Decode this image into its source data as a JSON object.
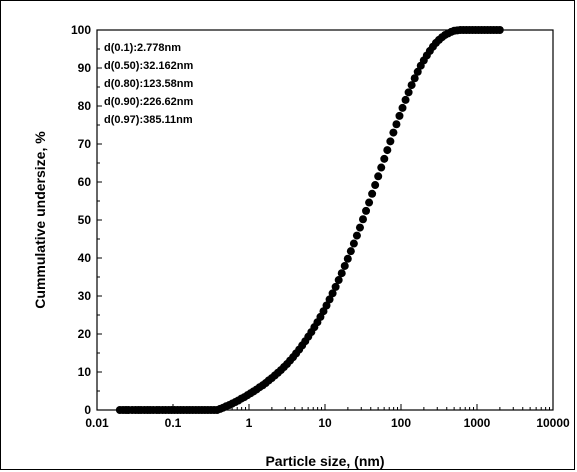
{
  "chart_data": {
    "type": "scatter",
    "xlabel": "Particle size, (nm)",
    "ylabel": "Cummulative undersize, %",
    "xscale": "log",
    "xlim": [
      0.01,
      10000
    ],
    "ylim": [
      0,
      100
    ],
    "x_ticks": [
      "0.01",
      "0.1",
      "1",
      "10",
      "100",
      "1000",
      "10000"
    ],
    "y_ticks": [
      "0",
      "10",
      "20",
      "30",
      "40",
      "50",
      "60",
      "70",
      "80",
      "90",
      "100"
    ],
    "annotations": [
      "d(0.1):2.778nm",
      "d(0.50):32.162nm",
      "d(0.80):123.58nm",
      "d(0.90):226.62nm",
      "d(0.97):385.11nm"
    ],
    "grid": false,
    "marker_color": "#000000",
    "series": [
      {
        "x": [
          0.02,
          0.022,
          0.024,
          0.026,
          0.029,
          0.032,
          0.035,
          0.038,
          0.042,
          0.046,
          0.05,
          0.055,
          0.061,
          0.066,
          0.073,
          0.08,
          0.088,
          0.096,
          0.105,
          0.115,
          0.126,
          0.138,
          0.152,
          0.166,
          0.182,
          0.2,
          0.219,
          0.24,
          0.263,
          0.288,
          0.316,
          0.347,
          0.38,
          0.417,
          0.457,
          0.501,
          0.55,
          0.603,
          0.661,
          0.724,
          0.794,
          0.871,
          0.955,
          1.047,
          1.148,
          1.259,
          1.38,
          1.514,
          1.66,
          1.82,
          1.995,
          2.188,
          2.399,
          2.63,
          2.884,
          3.162,
          3.467,
          3.802,
          4.169,
          4.571,
          5.012,
          5.495,
          6.026,
          6.607,
          7.244,
          7.943,
          8.71,
          9.55,
          10.47,
          11.48,
          12.59,
          13.8,
          15.14,
          16.6,
          18.2,
          19.95,
          21.88,
          23.99,
          26.3,
          28.84,
          31.62,
          34.67,
          38.02,
          41.69,
          45.71,
          50.12,
          54.95,
          60.26,
          66.07,
          72.44,
          79.43,
          87.1,
          95.5,
          104.7,
          114.8,
          125.9,
          138,
          151.4,
          166,
          182,
          199.5,
          218.8,
          239.9,
          263,
          288.4,
          316.2,
          346.7,
          380.2,
          416.9,
          457.1,
          501.2,
          549.5,
          602.6,
          660.7,
          724.4,
          794.3,
          871,
          955,
          1047,
          1148,
          1259,
          1380,
          1514,
          1660,
          1820,
          1995
        ],
        "y": [
          0,
          0,
          0,
          0,
          0,
          0,
          0,
          0,
          0,
          0,
          0,
          0,
          0,
          0,
          0,
          0,
          0,
          0,
          0,
          0,
          0,
          0,
          0,
          0,
          0,
          0,
          0,
          0,
          0,
          0,
          0,
          0,
          0,
          0.3,
          0.6,
          1,
          1.3,
          1.7,
          2.1,
          2.5,
          3,
          3.4,
          3.9,
          4.4,
          4.9,
          5.4,
          6,
          6.5,
          7.1,
          7.8,
          8.4,
          9.1,
          9.8,
          10.5,
          11.3,
          12.1,
          13,
          13.9,
          14.9,
          15.9,
          17,
          18.1,
          19.3,
          20.5,
          21.8,
          23.1,
          24.5,
          26,
          27.5,
          29.1,
          30.7,
          32.4,
          34.2,
          36,
          37.9,
          39.8,
          41.8,
          43.8,
          45.9,
          48,
          50.2,
          52.4,
          54.6,
          56.9,
          59.2,
          61.5,
          63.8,
          66.1,
          68.4,
          70.7,
          73,
          75.2,
          77.4,
          79.5,
          81.6,
          83.6,
          85.5,
          87.3,
          89,
          90.6,
          92,
          93.3,
          94.5,
          95.6,
          96.6,
          97.4,
          98.1,
          98.7,
          99.1,
          99.5,
          99.8,
          99.9,
          100,
          100,
          100,
          100,
          100,
          100,
          100,
          100,
          100,
          100,
          100,
          100,
          100,
          100
        ]
      }
    ]
  }
}
